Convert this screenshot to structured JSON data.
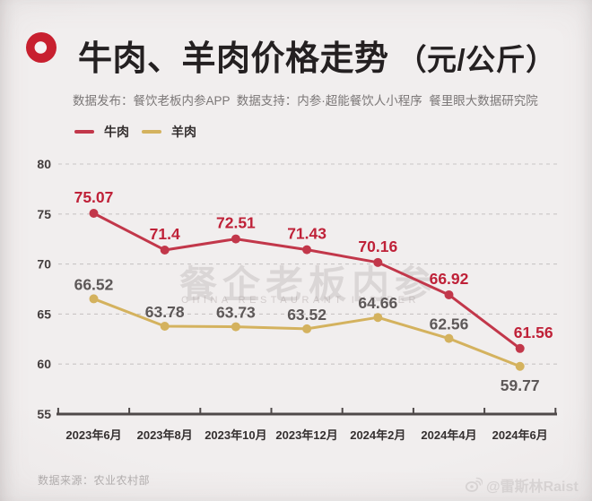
{
  "header": {
    "title_main": "牛肉、羊肉价格走势",
    "title_unit": "（元/公斤）",
    "subtitle": "数据发布：餐饮老板内参APP  数据支持：内参·超能餐饮人小程序  餐里眼大数据研究院"
  },
  "legend": [
    {
      "label": "牛肉",
      "color": "#c2374a"
    },
    {
      "label": "羊肉",
      "color": "#d4b25e"
    }
  ],
  "chart_data": {
    "type": "line",
    "title": "牛肉、羊肉价格走势（元/公斤）",
    "categories": [
      "2023年6月",
      "2023年8月",
      "2023年10月",
      "2023年12月",
      "2024年2月",
      "2024年4月",
      "2024年6月"
    ],
    "series": [
      {
        "name": "牛肉",
        "color": "#c2374a",
        "label_color": "#bf2138",
        "values": [
          75.07,
          71.4,
          72.51,
          71.43,
          70.16,
          66.92,
          61.56
        ]
      },
      {
        "name": "羊肉",
        "color": "#d4b25e",
        "label_color": "#5d5858",
        "values": [
          66.52,
          63.78,
          63.73,
          63.52,
          64.66,
          62.56,
          59.77
        ]
      }
    ],
    "ylim": [
      55,
      80
    ],
    "yticks": [
      80,
      75,
      70,
      65,
      60,
      55
    ],
    "grid": "horizontal-dashed",
    "legend_position": "top-left"
  },
  "watermark": {
    "cn": "餐企老板内参",
    "en": "CHINA RESTAURANT INSIDER"
  },
  "footer": {
    "source": "数据来源：农业农村部",
    "credit": "@雷斯林Raist"
  }
}
